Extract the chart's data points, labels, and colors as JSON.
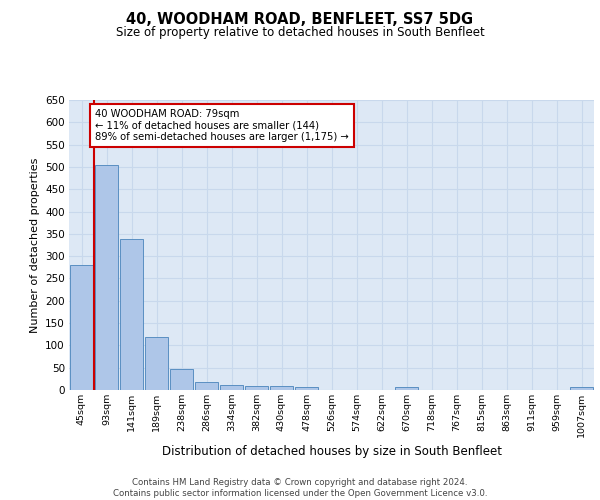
{
  "title": "40, WOODHAM ROAD, BENFLEET, SS7 5DG",
  "subtitle": "Size of property relative to detached houses in South Benfleet",
  "xlabel": "Distribution of detached houses by size in South Benfleet",
  "ylabel": "Number of detached properties",
  "categories": [
    "45sqm",
    "93sqm",
    "141sqm",
    "189sqm",
    "238sqm",
    "286sqm",
    "334sqm",
    "382sqm",
    "430sqm",
    "478sqm",
    "526sqm",
    "574sqm",
    "622sqm",
    "670sqm",
    "718sqm",
    "767sqm",
    "815sqm",
    "863sqm",
    "911sqm",
    "959sqm",
    "1007sqm"
  ],
  "values": [
    280,
    505,
    338,
    119,
    47,
    17,
    11,
    10,
    10,
    6,
    0,
    0,
    0,
    6,
    0,
    0,
    0,
    0,
    0,
    0,
    6
  ],
  "bar_color": "#aec6e8",
  "bar_edge_color": "#5a8fc2",
  "annotation_box_text": "40 WOODHAM ROAD: 79sqm\n← 11% of detached houses are smaller (144)\n89% of semi-detached houses are larger (1,175) →",
  "annotation_box_color": "#cc0000",
  "ylim": [
    0,
    650
  ],
  "yticks": [
    0,
    50,
    100,
    150,
    200,
    250,
    300,
    350,
    400,
    450,
    500,
    550,
    600,
    650
  ],
  "grid_color": "#c8d8ec",
  "background_color": "#dde8f5",
  "footer_text": "Contains HM Land Registry data © Crown copyright and database right 2024.\nContains public sector information licensed under the Open Government Licence v3.0.",
  "red_line_x": 0.5
}
